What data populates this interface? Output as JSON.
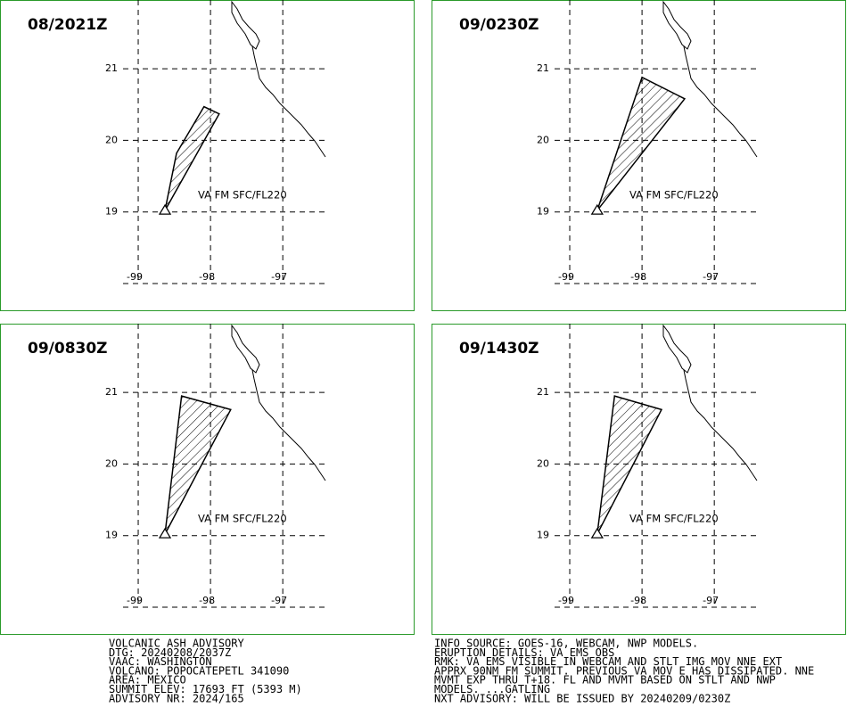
{
  "map": {
    "lon_range": [
      -99.21,
      -96.41
    ],
    "lat_range": [
      18.0,
      21.96
    ]
  },
  "panels": [
    {
      "title": "08/2021Z",
      "label": "VA FM SFC/FL220",
      "lat_ticks": [
        21,
        20,
        19
      ],
      "lon_ticks": [
        -99,
        -98,
        -97
      ],
      "ash_polygon": [
        [
          -98.63,
          19.02
        ],
        [
          -98.47,
          19.82
        ],
        [
          -98.09,
          20.47
        ],
        [
          -97.88,
          20.37
        ]
      ]
    },
    {
      "title": "09/0230Z",
      "label": "VA FM SFC/FL220",
      "lat_ticks": [
        21,
        20,
        19
      ],
      "lon_ticks": [
        -99,
        -98,
        -97
      ],
      "ash_polygon": [
        [
          -98.62,
          19.02
        ],
        [
          -98.0,
          20.88
        ],
        [
          -97.41,
          20.58
        ]
      ]
    },
    {
      "title": "09/0830Z",
      "label": "VA FM SFC/FL220",
      "lat_ticks": [
        21,
        20,
        19
      ],
      "lon_ticks": [
        -99,
        -98,
        -97
      ],
      "ash_polygon": [
        [
          -98.63,
          19.02
        ],
        [
          -98.4,
          20.95
        ],
        [
          -97.72,
          20.76
        ]
      ]
    },
    {
      "title": "09/1430Z",
      "label": "VA FM SFC/FL220",
      "lat_ticks": [
        21,
        20,
        19
      ],
      "lon_ticks": [
        -99,
        -98,
        -97
      ],
      "ash_polygon": [
        [
          -98.62,
          19.02
        ],
        [
          -98.38,
          20.95
        ],
        [
          -97.73,
          20.76
        ]
      ]
    }
  ],
  "advisory_left": [
    "VOLCANIC ASH ADVISORY",
    "DTG: 20240208/2037Z",
    "VAAC: WASHINGTON",
    "VOLCANO: POPOCATEPETL 341090",
    "AREA: MEXICO",
    "SUMMIT ELEV: 17693 FT (5393 M)",
    "ADVISORY NR: 2024/165"
  ],
  "advisory_right": [
    "INFO SOURCE: GOES-16, WEBCAM, NWP MODELS.",
    "ERUPTION DETAILS: VA EMS OBS",
    "RMK: VA EMS VISIBLE IN WEBCAM AND STLT IMG MOV NNE EXT",
    "APPRX 90NM FM SUMMIT. PREVIOUS VA MOV E HAS DISSIPATED. NNE",
    "MVMT EXP THRU T+18. FL AND MVMT BASED ON STLT AND NWP",
    "MODELS. ...GATLING",
    "NXT ADVISORY: WILL BE ISSUED BY 20240209/0230Z"
  ]
}
